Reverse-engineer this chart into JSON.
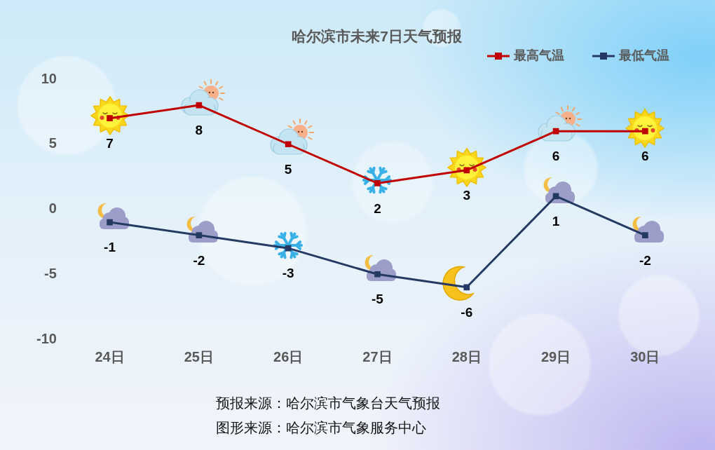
{
  "chart_data": {
    "type": "line",
    "title": "哈尔滨市未来7日天气预报",
    "categories": [
      "24日",
      "25日",
      "26日",
      "27日",
      "28日",
      "29日",
      "30日"
    ],
    "series": [
      {
        "name": "最高气温",
        "color": "#c00000",
        "values": [
          7,
          8,
          5,
          2,
          3,
          6,
          6
        ]
      },
      {
        "name": "最低气温",
        "color": "#243a63",
        "values": [
          -1,
          -2,
          -3,
          -5,
          -6,
          1,
          -2
        ]
      }
    ],
    "ylim": [
      -10,
      10
    ],
    "yticks": [
      -10,
      -5,
      0,
      5,
      10
    ],
    "grid": false,
    "legend": "top right",
    "marker": "square",
    "line_style": "solid",
    "data_labels": true,
    "annotations": [
      "预报来源：哈尔滨市气象台天气预报",
      "图形来源：哈尔滨市气象服务中心"
    ]
  }
}
